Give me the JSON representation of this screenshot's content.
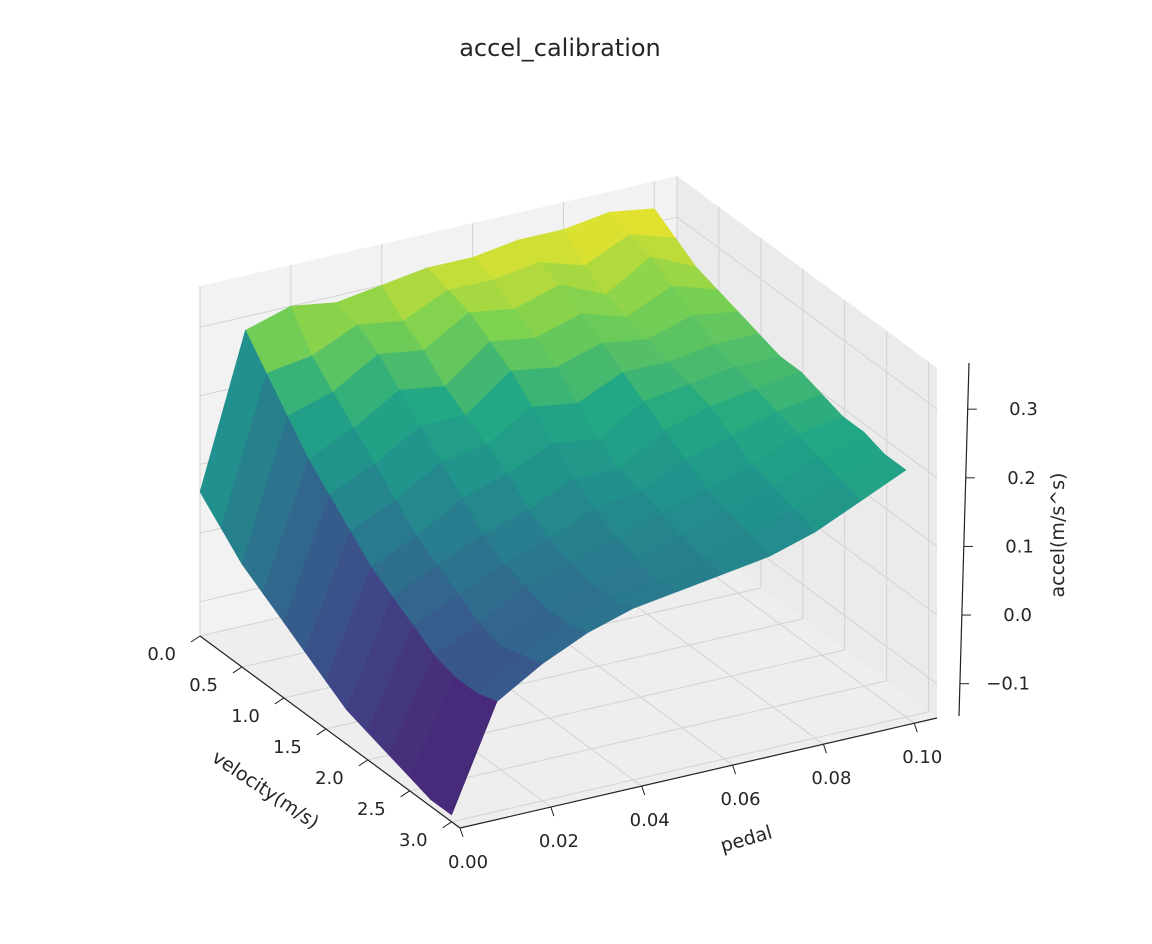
{
  "chart_data": {
    "type": "surface3d",
    "title": "accel_calibration",
    "xlabel": "velocity(m/s)",
    "ylabel": "pedal",
    "zlabel": "accel(m/s^s)",
    "x_ticks": [
      "0.0",
      "0.5",
      "1.0",
      "1.5",
      "2.0",
      "2.5",
      "3.0"
    ],
    "y_ticks": [
      "0.00",
      "0.02",
      "0.04",
      "0.06",
      "0.08",
      "0.10"
    ],
    "z_ticks": [
      "−0.1",
      "0.0",
      "0.1",
      "0.2",
      "0.3"
    ],
    "xlim": [
      0,
      3.1
    ],
    "ylim": [
      0,
      0.105
    ],
    "zlim": [
      -0.15,
      0.36
    ],
    "grid": true,
    "colormap": "viridis",
    "velocity": [
      0.0,
      0.25,
      0.5,
      0.75,
      1.0,
      1.25,
      1.5,
      1.75,
      2.0,
      2.25,
      2.5,
      2.75,
      3.0
    ],
    "pedal": [
      0.0,
      0.01,
      0.02,
      0.03,
      0.04,
      0.05,
      0.06,
      0.07,
      0.08,
      0.09,
      0.1
    ],
    "accel": [
      [
        0.06,
        0.28,
        0.3,
        0.29,
        0.3,
        0.31,
        0.31,
        0.32,
        0.32,
        0.33,
        0.32
      ],
      [
        0.03,
        0.24,
        0.25,
        0.28,
        0.27,
        0.3,
        0.3,
        0.31,
        0.29,
        0.32,
        0.3
      ],
      [
        0.0,
        0.2,
        0.22,
        0.26,
        0.25,
        0.29,
        0.28,
        0.3,
        0.27,
        0.31,
        0.28
      ],
      [
        -0.02,
        0.16,
        0.19,
        0.23,
        0.22,
        0.27,
        0.26,
        0.28,
        0.26,
        0.29,
        0.27
      ],
      [
        -0.04,
        0.13,
        0.16,
        0.2,
        0.2,
        0.25,
        0.24,
        0.26,
        0.25,
        0.27,
        0.26
      ],
      [
        -0.06,
        0.1,
        0.13,
        0.17,
        0.18,
        0.22,
        0.21,
        0.24,
        0.24,
        0.25,
        0.25
      ],
      [
        -0.08,
        0.07,
        0.1,
        0.14,
        0.16,
        0.19,
        0.18,
        0.22,
        0.23,
        0.24,
        0.24
      ],
      [
        -0.1,
        0.05,
        0.08,
        0.11,
        0.13,
        0.16,
        0.16,
        0.2,
        0.22,
        0.23,
        0.24
      ],
      [
        -0.11,
        0.03,
        0.06,
        0.09,
        0.11,
        0.14,
        0.15,
        0.18,
        0.2,
        0.22,
        0.23
      ],
      [
        -0.12,
        0.01,
        0.04,
        0.08,
        0.1,
        0.12,
        0.14,
        0.16,
        0.18,
        0.21,
        0.22
      ],
      [
        -0.13,
        0.0,
        0.03,
        0.07,
        0.09,
        0.11,
        0.13,
        0.15,
        0.17,
        0.2,
        0.22
      ],
      [
        -0.14,
        0.0,
        0.04,
        0.07,
        0.09,
        0.1,
        0.12,
        0.14,
        0.16,
        0.19,
        0.21
      ],
      [
        -0.14,
        0.01,
        0.05,
        0.08,
        0.1,
        0.11,
        0.12,
        0.13,
        0.15,
        0.18,
        0.21
      ]
    ]
  }
}
